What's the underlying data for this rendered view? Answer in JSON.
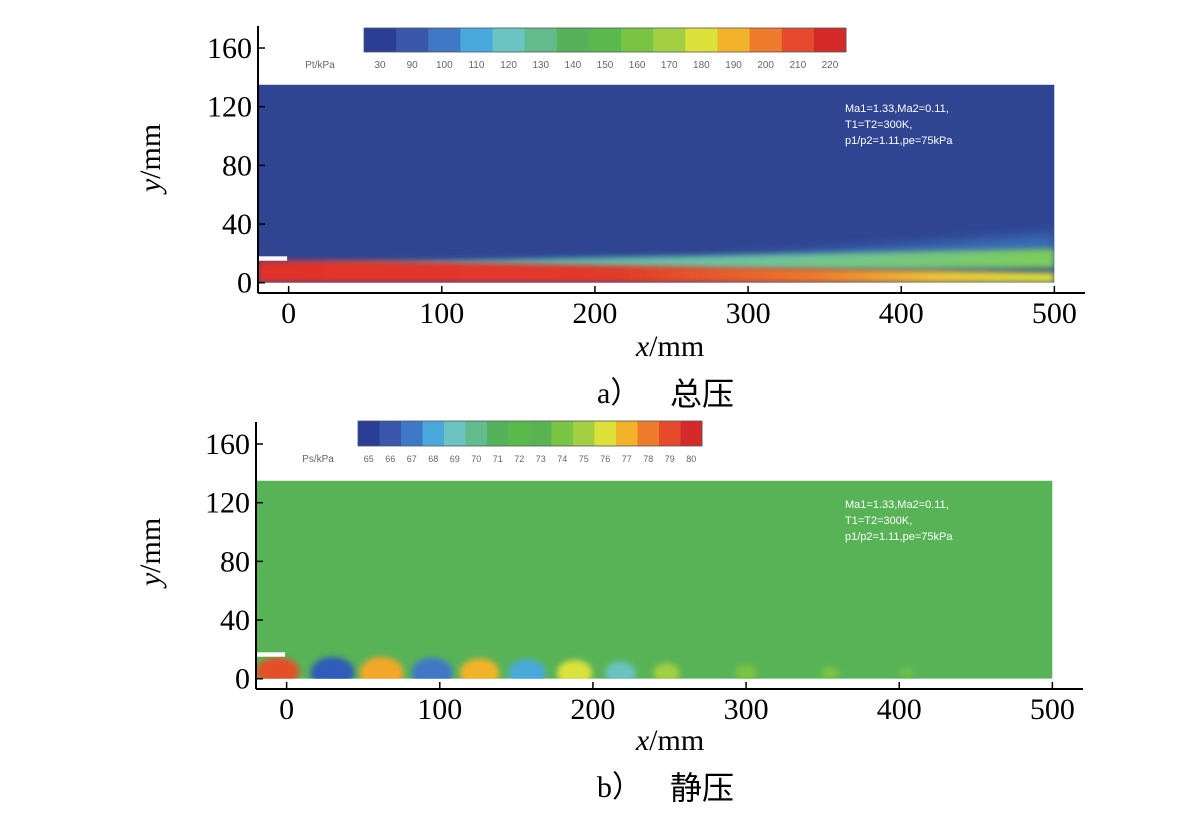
{
  "chart_data": [
    {
      "type": "heatmap",
      "panel_label": "a）",
      "panel_title": "总压",
      "xlabel_var": "x",
      "xlabel_unit": "/mm",
      "ylabel_var": "y",
      "ylabel_unit": "/mm",
      "x_ticks": [
        "0",
        "100",
        "200",
        "300",
        "400",
        "500"
      ],
      "y_ticks": [
        "0",
        "40",
        "80",
        "120",
        "160"
      ],
      "xlim": [
        -20,
        520
      ],
      "ylim": [
        -7,
        175
      ],
      "domain_x": [
        -20,
        500
      ],
      "domain_y": [
        0,
        135
      ],
      "colorbar": {
        "title": "Pt/kPa",
        "ticks": [
          "30",
          "90",
          "100",
          "110",
          "120",
          "130",
          "140",
          "150",
          "160",
          "170",
          "180",
          "190",
          "200",
          "210",
          "220"
        ],
        "colors": [
          "#2b3e96",
          "#3a57ac",
          "#3f78c6",
          "#4aa9dc",
          "#6bc3c2",
          "#62bb8c",
          "#55b25a",
          "#59b94d",
          "#79c443",
          "#a3d043",
          "#dce23a",
          "#f2b32a",
          "#ee7b2c",
          "#e54a2c",
          "#d42a2a"
        ]
      },
      "annotation": [
        "Ma1=1.33,Ma2=0.11,",
        "T1=T2=300K,",
        "p1/p2=1.11,pe=75kPa"
      ],
      "background_color": "#2f4592"
    },
    {
      "type": "heatmap",
      "panel_label": "b）",
      "panel_title": "静压",
      "xlabel_var": "x",
      "xlabel_unit": "/mm",
      "ylabel_var": "y",
      "ylabel_unit": "/mm",
      "x_ticks": [
        "0",
        "100",
        "200",
        "300",
        "400",
        "500"
      ],
      "y_ticks": [
        "0",
        "40",
        "80",
        "120",
        "160"
      ],
      "xlim": [
        -20,
        520
      ],
      "ylim": [
        -7,
        175
      ],
      "domain_x": [
        -20,
        500
      ],
      "domain_y": [
        0,
        135
      ],
      "colorbar": {
        "title": "Ps/kPa",
        "ticks": [
          "65",
          "66",
          "67",
          "68",
          "69",
          "70",
          "71",
          "72",
          "73",
          "74",
          "75",
          "76",
          "77",
          "78",
          "79",
          "80"
        ],
        "colors": [
          "#2b3e96",
          "#3a57ac",
          "#3f78c6",
          "#4aa9dc",
          "#6bc3c2",
          "#62bb8c",
          "#55b25a",
          "#59b94d",
          "#5ab353",
          "#79c443",
          "#a3d043",
          "#dce23a",
          "#f2b32a",
          "#ee7b2c",
          "#e54a2c",
          "#d42a2a"
        ]
      },
      "annotation": [
        "Ma1=1.33,Ma2=0.11,",
        "T1=T2=300K,",
        "p1/p2=1.11,pe=75kPa"
      ],
      "background_color": "#58b356"
    }
  ]
}
